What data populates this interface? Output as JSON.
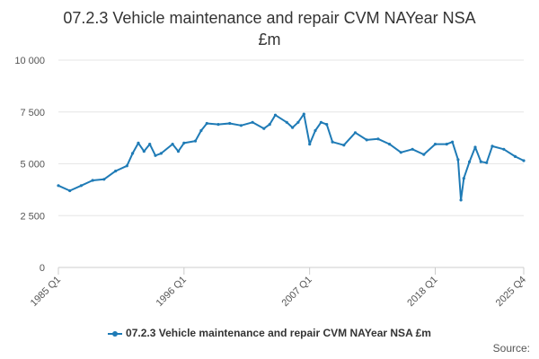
{
  "title_line1": "07.2.3 Vehicle maintenance and repair CVM NAYear NSA",
  "title_line2": "£m",
  "credits": "Source:",
  "colors": {
    "series": "#1f7bb6",
    "grid": "#e6e6e6",
    "axis": "#cccccc",
    "text": "#555555"
  },
  "chart_data": {
    "type": "line",
    "title": "07.2.3 Vehicle maintenance and repair CVM NAYear NSA £m",
    "xlabel": "",
    "ylabel": "",
    "ylim": [
      0,
      10000
    ],
    "y_ticks": [
      0,
      2500,
      5000,
      7500,
      10000
    ],
    "y_tick_labels": [
      "0",
      "2 500",
      "5 000",
      "7 500",
      "10 000"
    ],
    "x_tick_labels": [
      "1985 Q1",
      "1996 Q1",
      "2007 Q1",
      "2018 Q1",
      "2025 Q4"
    ],
    "grid": true,
    "legend_position": "bottom-center",
    "series": [
      {
        "name": "07.2.3 Vehicle maintenance and repair CVM NAYear NSA £m",
        "x": [
          "1985 Q1",
          "1986 Q1",
          "1987 Q1",
          "1988 Q1",
          "1989 Q1",
          "1990 Q1",
          "1991 Q1",
          "1991 Q3",
          "1992 Q1",
          "1992 Q3",
          "1993 Q1",
          "1993 Q3",
          "1994 Q1",
          "1995 Q1",
          "1995 Q3",
          "1996 Q1",
          "1997 Q1",
          "1997 Q3",
          "1998 Q1",
          "1999 Q1",
          "2000 Q1",
          "2001 Q1",
          "2002 Q1",
          "2003 Q1",
          "2003 Q3",
          "2004 Q1",
          "2005 Q1",
          "2005 Q3",
          "2006 Q1",
          "2006 Q3",
          "2007 Q1",
          "2007 Q3",
          "2008 Q1",
          "2008 Q3",
          "2009 Q1",
          "2010 Q1",
          "2011 Q1",
          "2012 Q1",
          "2013 Q1",
          "2014 Q1",
          "2015 Q1",
          "2016 Q1",
          "2017 Q1",
          "2018 Q1",
          "2019 Q1",
          "2019 Q3",
          "2020 Q1",
          "2020 Q2",
          "2020 Q3",
          "2021 Q1",
          "2021 Q3",
          "2022 Q1",
          "2022 Q3",
          "2023 Q1",
          "2024 Q1",
          "2025 Q1",
          "2025 Q4"
        ],
        "values": [
          3950,
          3700,
          3950,
          4200,
          4250,
          4650,
          4900,
          5500,
          6000,
          5600,
          5950,
          5400,
          5500,
          5950,
          5600,
          6000,
          6100,
          6600,
          6950,
          6900,
          6950,
          6850,
          7000,
          6700,
          6900,
          7350,
          7000,
          6750,
          7000,
          7400,
          5950,
          6600,
          7000,
          6900,
          6050,
          5900,
          6500,
          6150,
          6200,
          5950,
          5550,
          5700,
          5450,
          5950,
          5950,
          6050,
          5200,
          3250,
          4300,
          5100,
          5800,
          5100,
          5050,
          5850,
          5700,
          5350,
          5150
        ]
      }
    ]
  }
}
